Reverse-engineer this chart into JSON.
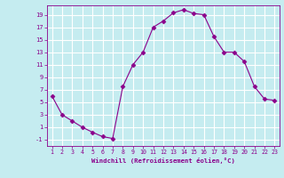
{
  "x": [
    1,
    2,
    3,
    4,
    5,
    6,
    7,
    8,
    9,
    10,
    11,
    12,
    13,
    14,
    15,
    16,
    17,
    18,
    19,
    20,
    21,
    22,
    23
  ],
  "y": [
    6,
    3,
    2,
    1,
    0.2,
    -0.5,
    -0.8,
    7.5,
    11,
    13,
    17,
    18,
    19.3,
    19.8,
    19.2,
    19,
    15.5,
    13,
    13,
    11.5,
    7.5,
    5.5,
    5.3
  ],
  "line_color": "#8B008B",
  "marker": "D",
  "marker_size": 2.5,
  "bg_color": "#C5ECF0",
  "grid_color": "#ffffff",
  "xlabel": "Windchill (Refroidissement éolien,°C)",
  "xlabel_color": "#8B008B",
  "tick_color": "#8B008B",
  "ylim": [
    -2,
    20.5
  ],
  "xlim": [
    0.5,
    23.5
  ],
  "yticks": [
    -1,
    1,
    3,
    5,
    7,
    9,
    11,
    13,
    15,
    17,
    19
  ],
  "xticks": [
    1,
    2,
    3,
    4,
    5,
    6,
    7,
    8,
    9,
    10,
    11,
    12,
    13,
    14,
    15,
    16,
    17,
    18,
    19,
    20,
    21,
    22,
    23
  ]
}
